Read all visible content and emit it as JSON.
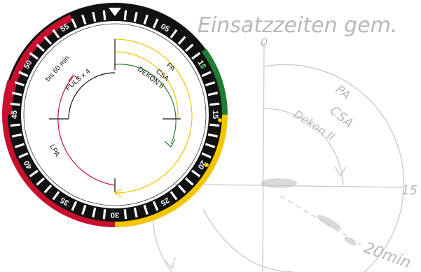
{
  "sketch": {
    "title": "Einsatzzeiten gem.",
    "zero_label": "0",
    "fifteen_label": "15",
    "pa_label": "PA",
    "csa_label": "CSA",
    "dekon_label": "Dekon II",
    "twenty_min_label": "20min"
  },
  "bezel": {
    "numerals": [
      "05",
      "10",
      "15",
      "20",
      "25",
      "30",
      "35",
      "40",
      "45",
      "50",
      "55"
    ],
    "colors": {
      "green": "#1e7d32",
      "yellow": "#f2c500",
      "red": "#c8102e",
      "black": "#111111"
    }
  },
  "arcs": [
    {
      "label": "PA",
      "color": "#f2c500"
    },
    {
      "label": "CSA",
      "color": "#f2c500"
    },
    {
      "label": "DEKON II",
      "color": "#2e7d32"
    },
    {
      "label": "PULS x 4",
      "color": "#111111"
    },
    {
      "label": "bis 60 min",
      "color": "#c8102e"
    },
    {
      "label": "LPA",
      "color": "#c8102e"
    }
  ]
}
